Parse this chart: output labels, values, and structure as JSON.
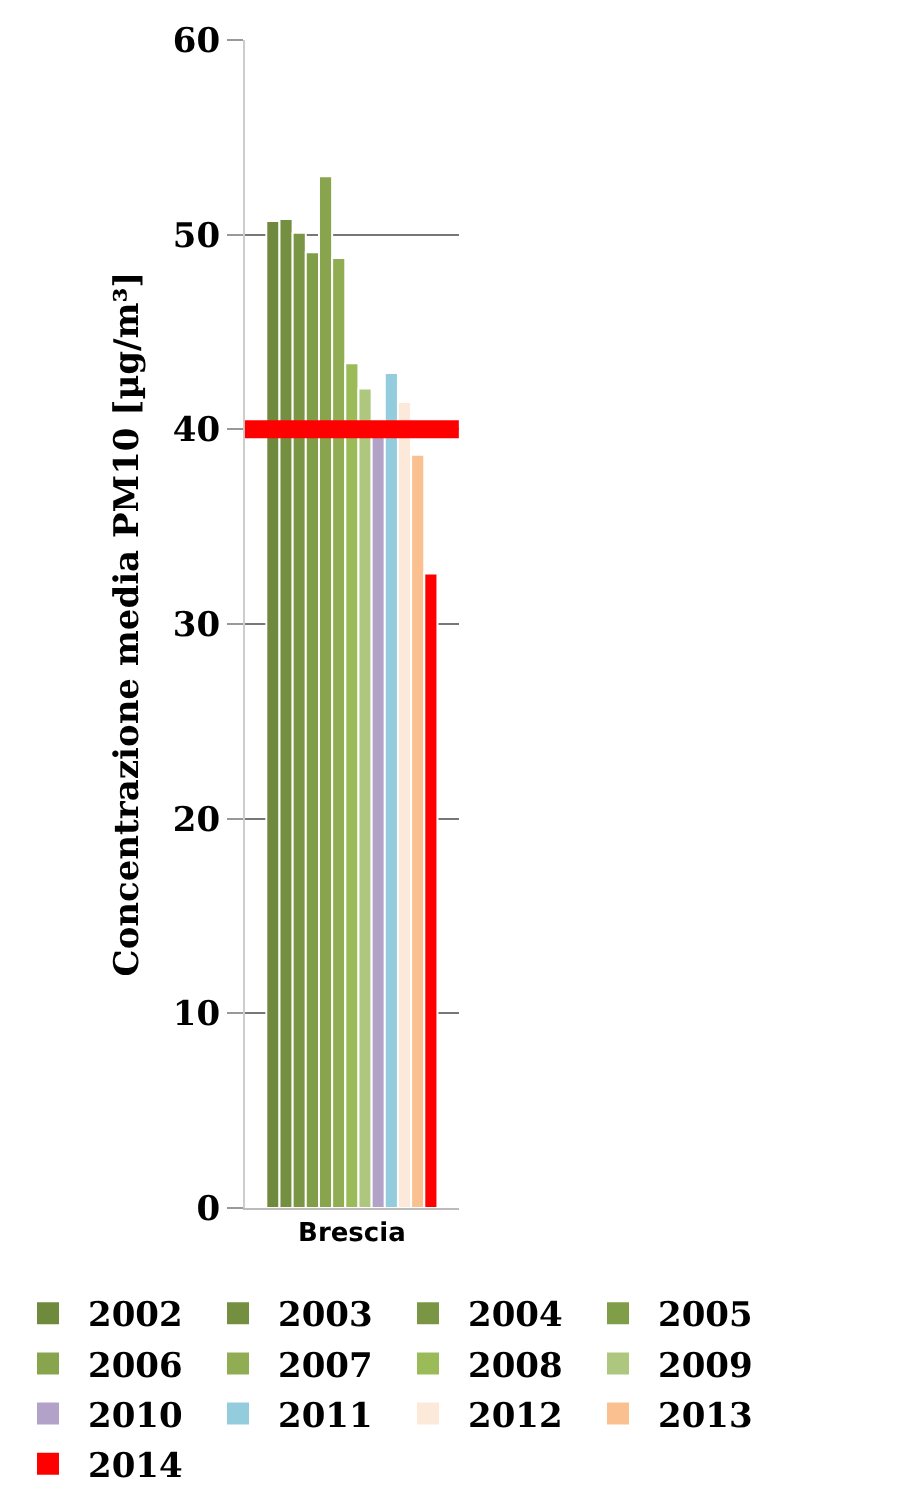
{
  "chart_data": {
    "type": "bar",
    "ylabel": "Concentrazione media PM10 [µg/m³]",
    "categories": [
      "Brescia"
    ],
    "series": [
      {
        "name": "2002",
        "color": "#6f8a3c",
        "values": [
          50.7
        ]
      },
      {
        "name": "2003",
        "color": "#738f3f",
        "values": [
          50.8
        ]
      },
      {
        "name": "2004",
        "color": "#7a9644",
        "values": [
          50.1
        ]
      },
      {
        "name": "2005",
        "color": "#809d48",
        "values": [
          49.1
        ]
      },
      {
        "name": "2006",
        "color": "#88a54e",
        "values": [
          53.0
        ]
      },
      {
        "name": "2007",
        "color": "#90ad54",
        "values": [
          48.8
        ]
      },
      {
        "name": "2008",
        "color": "#9bbb59",
        "values": [
          43.4
        ]
      },
      {
        "name": "2009",
        "color": "#aec77e",
        "values": [
          42.1
        ]
      },
      {
        "name": "2010",
        "color": "#b3a2c7",
        "values": [
          39.6
        ]
      },
      {
        "name": "2011",
        "color": "#93cddd",
        "values": [
          42.9
        ]
      },
      {
        "name": "2012",
        "color": "#fde9d9",
        "values": [
          41.4
        ]
      },
      {
        "name": "2013",
        "color": "#fac090",
        "values": [
          38.7
        ]
      },
      {
        "name": "2014",
        "color": "#ff0000",
        "values": [
          32.6
        ]
      }
    ],
    "ylim": [
      0,
      60
    ],
    "yticks": [
      0,
      10,
      20,
      30,
      40,
      50,
      60
    ],
    "grid": "y",
    "legend": "bottom",
    "ref_lines": [
      {
        "axis": "y",
        "value": 40,
        "color": "#ff0000"
      }
    ]
  }
}
